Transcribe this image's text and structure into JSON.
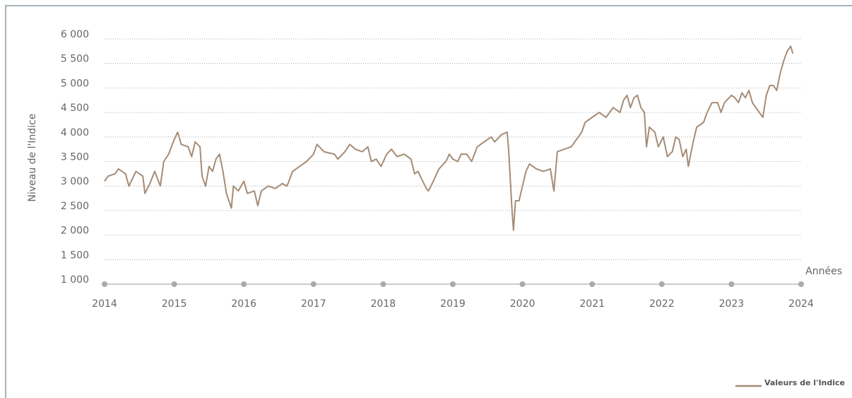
{
  "chart_data": {
    "type": "line",
    "y_label": "Niveau de l'Indice",
    "x_label": "Années",
    "xlim": [
      2014,
      2024
    ],
    "xticks": [
      2014,
      2015,
      2016,
      2017,
      2018,
      2019,
      2020,
      2021,
      2022,
      2023,
      2024
    ],
    "ylim": [
      1000,
      6000
    ],
    "yticks": [
      {
        "value": 1000,
        "label": "1 000"
      },
      {
        "value": 1500,
        "label": "1 500"
      },
      {
        "value": 2000,
        "label": "2 000"
      },
      {
        "value": 2500,
        "label": "2 500"
      },
      {
        "value": 3000,
        "label": "3 000"
      },
      {
        "value": 3500,
        "label": "3 500"
      },
      {
        "value": 4000,
        "label": "4 000"
      },
      {
        "value": 4500,
        "label": "4 500"
      },
      {
        "value": 5000,
        "label": "5 000"
      },
      {
        "value": 5500,
        "label": "5 500"
      },
      {
        "value": 6000,
        "label": "6 000"
      }
    ],
    "grid": true,
    "legend": "bottom-right",
    "x": [
      2014.0,
      2014.05,
      2014.15,
      2014.2,
      2014.3,
      2014.35,
      2014.45,
      2014.55,
      2014.58,
      2014.65,
      2014.72,
      2014.8,
      2014.85,
      2014.92,
      2015.0,
      2015.05,
      2015.1,
      2015.2,
      2015.25,
      2015.3,
      2015.37,
      2015.4,
      2015.45,
      2015.5,
      2015.55,
      2015.6,
      2015.65,
      2015.7,
      2015.75,
      2015.82,
      2015.85,
      2015.92,
      2016.0,
      2016.05,
      2016.15,
      2016.2,
      2016.25,
      2016.35,
      2016.45,
      2016.55,
      2016.62,
      2016.7,
      2016.8,
      2016.9,
      2017.0,
      2017.05,
      2017.15,
      2017.3,
      2017.35,
      2017.45,
      2017.52,
      2017.6,
      2017.7,
      2017.78,
      2017.83,
      2017.9,
      2017.97,
      2018.05,
      2018.12,
      2018.2,
      2018.3,
      2018.4,
      2018.45,
      2018.5,
      2018.55,
      2018.62,
      2018.65,
      2018.72,
      2018.8,
      2018.9,
      2018.95,
      2019.0,
      2019.07,
      2019.12,
      2019.2,
      2019.27,
      2019.35,
      2019.45,
      2019.55,
      2019.6,
      2019.7,
      2019.78,
      2019.8,
      2019.85,
      2019.87,
      2019.9,
      2019.95,
      2020.0,
      2020.05,
      2020.1,
      2020.2,
      2020.3,
      2020.4,
      2020.45,
      2020.5,
      2020.6,
      2020.7,
      2020.8,
      2020.85,
      2020.9,
      2021.0,
      2021.1,
      2021.2,
      2021.3,
      2021.4,
      2021.45,
      2021.5,
      2021.55,
      2021.6,
      2021.65,
      2021.7,
      2021.75,
      2021.78,
      2021.82,
      2021.9,
      2021.95,
      2022.02,
      2022.08,
      2022.15,
      2022.2,
      2022.25,
      2022.3,
      2022.35,
      2022.38,
      2022.45,
      2022.5,
      2022.6,
      2022.65,
      2022.72,
      2022.8,
      2022.85,
      2022.9,
      2023.0,
      2023.05,
      2023.1,
      2023.15,
      2023.2,
      2023.25,
      2023.3,
      2023.35,
      2023.4,
      2023.45,
      2023.5,
      2023.55,
      2023.6,
      2023.65,
      2023.7,
      2023.75,
      2023.8,
      2023.85,
      2023.88
    ],
    "series": [
      {
        "name": "Valeurs de l'Indice",
        "color": "#a58c76",
        "values": [
          3100,
          3200,
          3250,
          3350,
          3250,
          3000,
          3300,
          3200,
          2850,
          3050,
          3300,
          3000,
          3500,
          3650,
          3950,
          4100,
          3850,
          3800,
          3600,
          3900,
          3800,
          3200,
          3000,
          3400,
          3300,
          3550,
          3650,
          3300,
          2850,
          2550,
          3000,
          2900,
          3100,
          2850,
          2900,
          2600,
          2900,
          3000,
          2950,
          3050,
          3000,
          3300,
          3400,
          3500,
          3650,
          3850,
          3700,
          3650,
          3550,
          3700,
          3850,
          3750,
          3700,
          3800,
          3500,
          3550,
          3400,
          3650,
          3750,
          3600,
          3650,
          3550,
          3250,
          3300,
          3150,
          2950,
          2900,
          3100,
          3350,
          3500,
          3650,
          3550,
          3500,
          3650,
          3650,
          3500,
          3800,
          3900,
          4000,
          3900,
          4050,
          4100,
          3750,
          2500,
          2100,
          2700,
          2700,
          3000,
          3300,
          3450,
          3350,
          3300,
          3350,
          2900,
          3700,
          3750,
          3800,
          4000,
          4100,
          4300,
          4400,
          4500,
          4400,
          4600,
          4500,
          4750,
          4850,
          4600,
          4800,
          4850,
          4600,
          4500,
          3800,
          4200,
          4100,
          3800,
          4000,
          3600,
          3700,
          4000,
          3950,
          3600,
          3750,
          3400,
          3900,
          4200,
          4300,
          4500,
          4700,
          4700,
          4500,
          4700,
          4850,
          4800,
          4700,
          4900,
          4800,
          4950,
          4700,
          4600,
          4500,
          4400,
          4850,
          5050,
          5050,
          4950,
          5300,
          5550,
          5750,
          5850,
          5700
        ]
      }
    ]
  }
}
